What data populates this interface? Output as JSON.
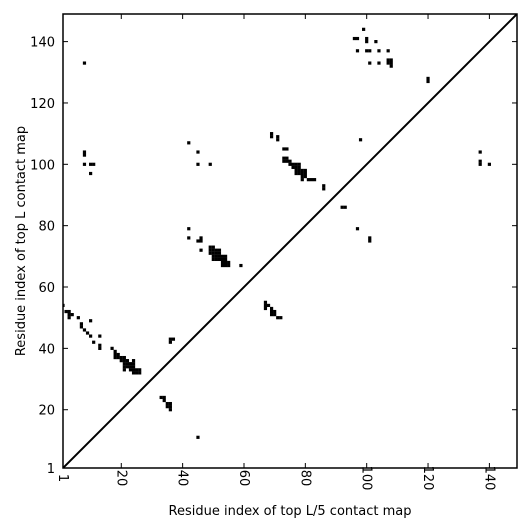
{
  "chart_data": {
    "type": "scatter",
    "xlabel": "Residue index of top L/5 contact map",
    "ylabel": "Residue index of top L contact map",
    "xlim": [
      1,
      149
    ],
    "ylim": [
      1,
      149
    ],
    "x_ticks": [
      1,
      20,
      40,
      60,
      80,
      100,
      120,
      140
    ],
    "y_ticks": [
      1,
      20,
      40,
      60,
      80,
      100,
      120,
      140
    ],
    "grid": false,
    "diagonal": true,
    "marker_color": "#000000",
    "points": [
      [
        1,
        54
      ],
      [
        2,
        52
      ],
      [
        3,
        52
      ],
      [
        3,
        51
      ],
      [
        3,
        50
      ],
      [
        4,
        51
      ],
      [
        6,
        50
      ],
      [
        7,
        48
      ],
      [
        7,
        47
      ],
      [
        8,
        46
      ],
      [
        9,
        45
      ],
      [
        10,
        44
      ],
      [
        10,
        49
      ],
      [
        11,
        42
      ],
      [
        13,
        44
      ],
      [
        13,
        41
      ],
      [
        13,
        40
      ],
      [
        17,
        40
      ],
      [
        18,
        39
      ],
      [
        18,
        38
      ],
      [
        18,
        37
      ],
      [
        19,
        38
      ],
      [
        19,
        37
      ],
      [
        20,
        37
      ],
      [
        20,
        36
      ],
      [
        21,
        37
      ],
      [
        21,
        36
      ],
      [
        21,
        35
      ],
      [
        21,
        34
      ],
      [
        21,
        33
      ],
      [
        22,
        36
      ],
      [
        22,
        35
      ],
      [
        22,
        34
      ],
      [
        23,
        35
      ],
      [
        23,
        34
      ],
      [
        23,
        33
      ],
      [
        24,
        36
      ],
      [
        24,
        35
      ],
      [
        24,
        34
      ],
      [
        24,
        33
      ],
      [
        24,
        32
      ],
      [
        25,
        33
      ],
      [
        25,
        32
      ],
      [
        26,
        33
      ],
      [
        26,
        32
      ],
      [
        33,
        24
      ],
      [
        34,
        24
      ],
      [
        34,
        23
      ],
      [
        35,
        22
      ],
      [
        35,
        21
      ],
      [
        36,
        22
      ],
      [
        36,
        21
      ],
      [
        36,
        20
      ],
      [
        36,
        43
      ],
      [
        36,
        42
      ],
      [
        37,
        43
      ],
      [
        8,
        133
      ],
      [
        8,
        104
      ],
      [
        8,
        103
      ],
      [
        8,
        100
      ],
      [
        10,
        100
      ],
      [
        11,
        100
      ],
      [
        10,
        97
      ],
      [
        42,
        107
      ],
      [
        42,
        79
      ],
      [
        42,
        76
      ],
      [
        45,
        104
      ],
      [
        45,
        100
      ],
      [
        45,
        75
      ],
      [
        46,
        76
      ],
      [
        46,
        75
      ],
      [
        46,
        72
      ],
      [
        45,
        11
      ],
      [
        49,
        100
      ],
      [
        49,
        73
      ],
      [
        49,
        72
      ],
      [
        49,
        71
      ],
      [
        50,
        73
      ],
      [
        50,
        72
      ],
      [
        50,
        71
      ],
      [
        50,
        70
      ],
      [
        50,
        69
      ],
      [
        51,
        72
      ],
      [
        51,
        71
      ],
      [
        51,
        70
      ],
      [
        51,
        69
      ],
      [
        52,
        72
      ],
      [
        52,
        71
      ],
      [
        52,
        70
      ],
      [
        52,
        69
      ],
      [
        53,
        70
      ],
      [
        53,
        69
      ],
      [
        53,
        68
      ],
      [
        53,
        67
      ],
      [
        54,
        70
      ],
      [
        54,
        69
      ],
      [
        54,
        68
      ],
      [
        54,
        67
      ],
      [
        55,
        68
      ],
      [
        55,
        67
      ],
      [
        59,
        67
      ],
      [
        67,
        55
      ],
      [
        67,
        54
      ],
      [
        67,
        53
      ],
      [
        68,
        54
      ],
      [
        69,
        53
      ],
      [
        69,
        52
      ],
      [
        69,
        51
      ],
      [
        70,
        52
      ],
      [
        70,
        51
      ],
      [
        71,
        50
      ],
      [
        72,
        50
      ],
      [
        69,
        110
      ],
      [
        69,
        109
      ],
      [
        71,
        109
      ],
      [
        71,
        108
      ],
      [
        73,
        105
      ],
      [
        74,
        105
      ],
      [
        73,
        102
      ],
      [
        73,
        101
      ],
      [
        74,
        102
      ],
      [
        74,
        101
      ],
      [
        75,
        101
      ],
      [
        75,
        100
      ],
      [
        76,
        100
      ],
      [
        76,
        99
      ],
      [
        77,
        100
      ],
      [
        77,
        99
      ],
      [
        77,
        98
      ],
      [
        77,
        97
      ],
      [
        78,
        100
      ],
      [
        78,
        99
      ],
      [
        78,
        98
      ],
      [
        78,
        97
      ],
      [
        79,
        98
      ],
      [
        79,
        97
      ],
      [
        79,
        96
      ],
      [
        80,
        98
      ],
      [
        80,
        97
      ],
      [
        80,
        96
      ],
      [
        79,
        95
      ],
      [
        81,
        95
      ],
      [
        82,
        95
      ],
      [
        83,
        95
      ],
      [
        86,
        93
      ],
      [
        86,
        92
      ],
      [
        92,
        86
      ],
      [
        93,
        86
      ],
      [
        96,
        141
      ],
      [
        97,
        141
      ],
      [
        97,
        137
      ],
      [
        99,
        144
      ],
      [
        100,
        141
      ],
      [
        100,
        140
      ],
      [
        100,
        137
      ],
      [
        101,
        137
      ],
      [
        101,
        133
      ],
      [
        103,
        140
      ],
      [
        104,
        137
      ],
      [
        104,
        133
      ],
      [
        107,
        137
      ],
      [
        107,
        134
      ],
      [
        107,
        133
      ],
      [
        108,
        134
      ],
      [
        108,
        133
      ],
      [
        108,
        132
      ],
      [
        98,
        108
      ],
      [
        97,
        79
      ],
      [
        101,
        76
      ],
      [
        101,
        75
      ],
      [
        120,
        128
      ],
      [
        120,
        127
      ],
      [
        137,
        104
      ],
      [
        137,
        101
      ],
      [
        137,
        100
      ],
      [
        140,
        100
      ]
    ]
  }
}
